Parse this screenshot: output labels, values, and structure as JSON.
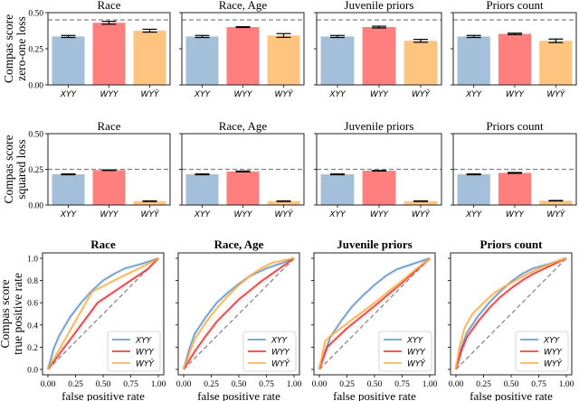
{
  "chart_data": [
    {
      "type": "bar",
      "row": "zero-one loss",
      "ylabel_lines": [
        "Compas score",
        "zero-one loss"
      ],
      "ylim": [
        0,
        0.5
      ],
      "yticks": [
        "0.00",
        "0.25",
        "0.50"
      ],
      "ytick_values": [
        0,
        0.25,
        0.5
      ],
      "categories": [
        "XYY",
        "WYY",
        "WYŶ"
      ],
      "colors": [
        "#a3bfd9",
        "#ff7f7f",
        "#ffc580"
      ],
      "baseline": 0.45,
      "panels": [
        {
          "title": "Race",
          "values": [
            0.335,
            0.43,
            0.375
          ],
          "errors": [
            0.007,
            0.01,
            0.01
          ]
        },
        {
          "title": "Race, Age",
          "values": [
            0.335,
            0.4,
            0.342
          ],
          "errors": [
            0.007,
            0.003,
            0.013
          ]
        },
        {
          "title": "Juvenile priors",
          "values": [
            0.335,
            0.4,
            0.305
          ],
          "errors": [
            0.007,
            0.006,
            0.01
          ]
        },
        {
          "title": "Priors count",
          "values": [
            0.335,
            0.353,
            0.305
          ],
          "errors": [
            0.007,
            0.005,
            0.012
          ]
        }
      ]
    },
    {
      "type": "bar",
      "row": "squared loss",
      "ylabel_lines": [
        "Compas score",
        "squared loss"
      ],
      "ylim": [
        0,
        0.5
      ],
      "yticks": [
        "0.00",
        "0.25",
        "0.50"
      ],
      "ytick_values": [
        0,
        0.25,
        0.5
      ],
      "categories": [
        "XYY",
        "WYY",
        "WYŶ"
      ],
      "colors": [
        "#a3bfd9",
        "#ff7f7f",
        "#ffc580"
      ],
      "baseline": 0.25,
      "panels": [
        {
          "title": "Race",
          "values": [
            0.215,
            0.244,
            0.027
          ],
          "errors": [
            0.003,
            0.002,
            0.002
          ]
        },
        {
          "title": "Race, Age",
          "values": [
            0.215,
            0.235,
            0.027
          ],
          "errors": [
            0.003,
            0.003,
            0.002
          ]
        },
        {
          "title": "Juvenile priors",
          "values": [
            0.215,
            0.24,
            0.027
          ],
          "errors": [
            0.003,
            0.002,
            0.002
          ]
        },
        {
          "title": "Priors count",
          "values": [
            0.215,
            0.225,
            0.03
          ],
          "errors": [
            0.003,
            0.003,
            0.002
          ]
        }
      ]
    },
    {
      "type": "line",
      "row": "ROC",
      "ylabel_lines": [
        "Compas score",
        "true positive rate"
      ],
      "xlabel": "false positive rate",
      "xlim": [
        0,
        1
      ],
      "ylim": [
        0,
        1
      ],
      "xticks": [
        "0.00",
        "0.25",
        "0.50",
        "0.75",
        "1.00"
      ],
      "xtick_values": [
        0,
        0.25,
        0.5,
        0.75,
        1
      ],
      "yticks": [
        "0.0",
        "0.2",
        "0.4",
        "0.6",
        "0.8",
        "1.0"
      ],
      "ytick_values": [
        0,
        0.2,
        0.4,
        0.6,
        0.8,
        1
      ],
      "legend": [
        "XYY",
        "WYY",
        "WYŶ"
      ],
      "legend_position": "lower-right",
      "colors": [
        "#5b8fc7",
        "#e8272a",
        "#ffa83a"
      ],
      "panels": [
        {
          "title": "Race",
          "series": [
            {
              "name": "XYY",
              "x": [
                0,
                0.05,
                0.1,
                0.2,
                0.3,
                0.4,
                0.5,
                0.6,
                0.7,
                0.85,
                1
              ],
              "y": [
                0,
                0.18,
                0.3,
                0.47,
                0.6,
                0.71,
                0.8,
                0.86,
                0.91,
                0.95,
                1
              ]
            },
            {
              "name": "WYY",
              "x": [
                0,
                0.15,
                0.3,
                0.45,
                0.6,
                0.75,
                0.9,
                1
              ],
              "y": [
                0,
                0.2,
                0.4,
                0.6,
                0.7,
                0.8,
                0.9,
                1
              ]
            },
            {
              "name": "WYŶ",
              "x": [
                0,
                0.2,
                0.4,
                0.5,
                0.6,
                0.7,
                0.85,
                1
              ],
              "y": [
                0,
                0.35,
                0.7,
                0.75,
                0.8,
                0.85,
                0.92,
                1
              ]
            }
          ]
        },
        {
          "title": "Race, Age",
          "series": [
            {
              "name": "XYY",
              "x": [
                0,
                0.05,
                0.1,
                0.2,
                0.3,
                0.4,
                0.5,
                0.6,
                0.75,
                0.9,
                1
              ],
              "y": [
                0,
                0.18,
                0.32,
                0.47,
                0.6,
                0.69,
                0.77,
                0.84,
                0.91,
                0.96,
                1
              ]
            },
            {
              "name": "WYY",
              "x": [
                0,
                0.1,
                0.2,
                0.3,
                0.4,
                0.5,
                0.6,
                0.7,
                0.8,
                0.9,
                1
              ],
              "y": [
                0,
                0.16,
                0.3,
                0.43,
                0.53,
                0.63,
                0.71,
                0.79,
                0.86,
                0.93,
                1
              ]
            },
            {
              "name": "WYŶ",
              "x": [
                0,
                0.05,
                0.1,
                0.2,
                0.3,
                0.4,
                0.5,
                0.6,
                0.7,
                0.8,
                0.9,
                1
              ],
              "y": [
                0,
                0.14,
                0.27,
                0.42,
                0.55,
                0.66,
                0.76,
                0.84,
                0.91,
                0.96,
                0.98,
                1
              ]
            }
          ]
        },
        {
          "title": "Juvenile priors",
          "series": [
            {
              "name": "XYY",
              "x": [
                0,
                0.05,
                0.1,
                0.2,
                0.3,
                0.4,
                0.5,
                0.6,
                0.7,
                0.85,
                1
              ],
              "y": [
                0,
                0.15,
                0.29,
                0.44,
                0.57,
                0.67,
                0.76,
                0.84,
                0.9,
                0.95,
                1
              ]
            },
            {
              "name": "WYY",
              "x": [
                0,
                0.07,
                0.25,
                0.5,
                0.75,
                1
              ],
              "y": [
                0,
                0.2,
                0.37,
                0.57,
                0.78,
                1
              ]
            },
            {
              "name": "WYŶ",
              "x": [
                0,
                0.05,
                0.1,
                0.3,
                0.5,
                0.75,
                1
              ],
              "y": [
                0,
                0.25,
                0.3,
                0.45,
                0.6,
                0.8,
                1
              ]
            }
          ]
        },
        {
          "title": "Priors count",
          "series": [
            {
              "name": "XYY",
              "x": [
                0,
                0.05,
                0.1,
                0.2,
                0.3,
                0.4,
                0.5,
                0.6,
                0.7,
                0.85,
                1
              ],
              "y": [
                0,
                0.2,
                0.33,
                0.48,
                0.6,
                0.7,
                0.79,
                0.86,
                0.91,
                0.95,
                1
              ]
            },
            {
              "name": "WYY",
              "x": [
                0,
                0.05,
                0.1,
                0.2,
                0.3,
                0.4,
                0.5,
                0.6,
                0.7,
                0.85,
                1
              ],
              "y": [
                0,
                0.17,
                0.29,
                0.43,
                0.55,
                0.65,
                0.73,
                0.8,
                0.86,
                0.93,
                1
              ]
            },
            {
              "name": "WYŶ",
              "x": [
                0,
                0.03,
                0.08,
                0.15,
                0.25,
                0.35,
                0.5,
                0.65,
                0.8,
                1
              ],
              "y": [
                0,
                0.2,
                0.38,
                0.5,
                0.6,
                0.69,
                0.78,
                0.86,
                0.93,
                1
              ]
            }
          ]
        }
      ]
    }
  ]
}
